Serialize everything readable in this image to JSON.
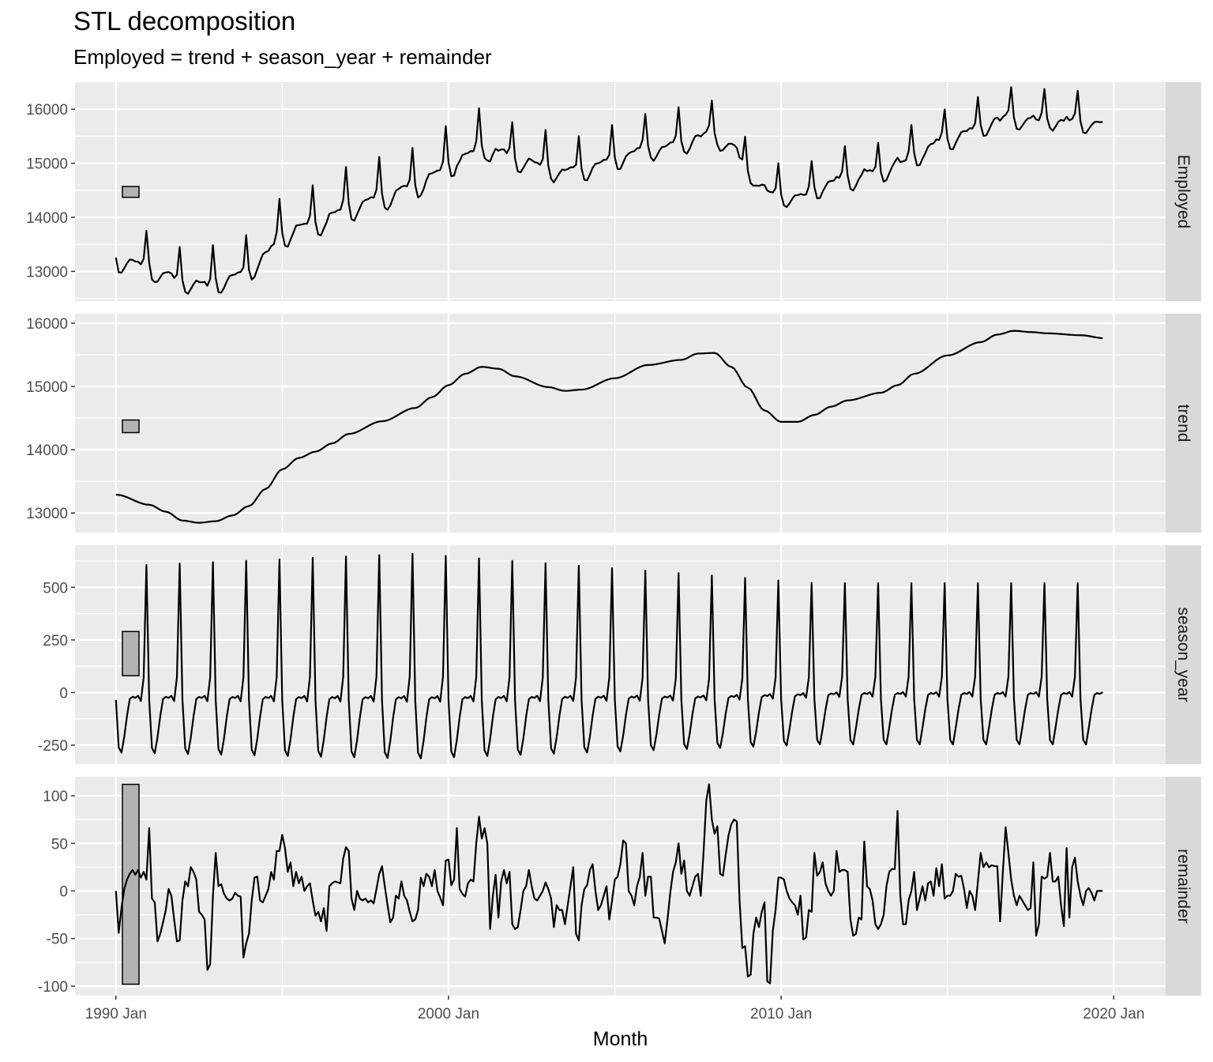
{
  "chart_data": {
    "type": "line",
    "title": "STL decomposition",
    "subtitle": "Employed = trend + season_year + remainder",
    "xlabel": "Month",
    "x_range": [
      "1990 Jan",
      "2019 Sep"
    ],
    "x_ticks": [
      "1990 Jan",
      "2000 Jan",
      "2010 Jan",
      "2020 Jan"
    ],
    "grid": true,
    "panels": [
      {
        "name": "Employed",
        "ylim": [
          12450,
          16500
        ],
        "y_ticks": [
          13000,
          14000,
          15000,
          16000
        ],
        "y_tick_labels": [
          "13000",
          "14000",
          "15000",
          "16000"
        ],
        "scale_bar": [
          14370,
          14570
        ]
      },
      {
        "name": "trend",
        "ylim": [
          12690,
          16150
        ],
        "y_ticks": [
          13000,
          14000,
          15000,
          16000
        ],
        "y_tick_labels": [
          "13000",
          "14000",
          "15000",
          "16000"
        ],
        "scale_bar": [
          14270,
          14470
        ],
        "knots": [
          [
            1990.0,
            13290
          ],
          [
            1991.0,
            13130
          ],
          [
            1991.5,
            13020
          ],
          [
            1992.0,
            12880
          ],
          [
            1992.5,
            12845
          ],
          [
            1993.0,
            12870
          ],
          [
            1993.5,
            12960
          ],
          [
            1994.0,
            13110
          ],
          [
            1994.5,
            13380
          ],
          [
            1995.0,
            13690
          ],
          [
            1995.5,
            13870
          ],
          [
            1996.0,
            13970
          ],
          [
            1996.5,
            14100
          ],
          [
            1997.0,
            14250
          ],
          [
            1998.0,
            14450
          ],
          [
            1999.0,
            14660
          ],
          [
            1999.5,
            14830
          ],
          [
            2000.0,
            15020
          ],
          [
            2000.5,
            15200
          ],
          [
            2001.0,
            15310
          ],
          [
            2001.5,
            15280
          ],
          [
            2002.0,
            15160
          ],
          [
            2003.0,
            14990
          ],
          [
            2003.5,
            14930
          ],
          [
            2004.0,
            14950
          ],
          [
            2005.0,
            15130
          ],
          [
            2006.0,
            15340
          ],
          [
            2007.0,
            15420
          ],
          [
            2007.5,
            15520
          ],
          [
            2008.0,
            15530
          ],
          [
            2008.5,
            15310
          ],
          [
            2009.0,
            14980
          ],
          [
            2009.5,
            14620
          ],
          [
            2010.0,
            14440
          ],
          [
            2010.5,
            14440
          ],
          [
            2011.0,
            14550
          ],
          [
            2011.5,
            14680
          ],
          [
            2012.0,
            14780
          ],
          [
            2013.0,
            14900
          ],
          [
            2013.5,
            15020
          ],
          [
            2014.0,
            15200
          ],
          [
            2015.0,
            15490
          ],
          [
            2016.0,
            15700
          ],
          [
            2016.5,
            15820
          ],
          [
            2017.0,
            15880
          ],
          [
            2017.5,
            15860
          ],
          [
            2018.0,
            15840
          ],
          [
            2019.0,
            15810
          ],
          [
            2019.75,
            15760
          ]
        ]
      },
      {
        "name": "season_year",
        "ylim": [
          -340,
          700
        ],
        "y_ticks": [
          -250,
          0,
          250,
          500
        ],
        "y_tick_labels": [
          "-250",
          "0",
          "250",
          "500"
        ],
        "scale_bar": [
          80,
          290
        ],
        "month_pattern": [
          -35,
          -260,
          -285,
          -210,
          -110,
          -30,
          -20,
          -25,
          -15,
          -40,
          70,
          600
        ],
        "pattern_start_amplitude": 600,
        "pattern_peak_amplitude": 660,
        "pattern_end_amplitude": 520
      },
      {
        "name": "remainder",
        "ylim": [
          -110,
          120
        ],
        "y_ticks": [
          -100,
          -50,
          0,
          50,
          100
        ],
        "y_tick_labels": [
          "-100",
          "-50",
          "0",
          "50",
          "100"
        ],
        "scale_bar": [
          -98,
          112
        ],
        "values": [
          0,
          -44,
          -18,
          2,
          12,
          18,
          22,
          17,
          22,
          14,
          20,
          12,
          66,
          -8,
          -12,
          -53,
          -45,
          -33,
          -20,
          2,
          -5,
          -30,
          -53,
          -52,
          -10,
          10,
          5,
          25,
          20,
          12,
          -22,
          -25,
          -30,
          -83,
          -77,
          -5,
          40,
          5,
          7,
          -3,
          -8,
          -10,
          -8,
          -2,
          -5,
          -6,
          -70,
          -55,
          -45,
          -10,
          14,
          15,
          -10,
          -12,
          -5,
          2,
          20,
          12,
          42,
          42,
          59,
          45,
          20,
          30,
          5,
          20,
          8,
          15,
          0,
          5,
          8,
          -10,
          -26,
          -22,
          -32,
          -18,
          -42,
          5,
          8,
          10,
          9,
          8,
          34,
          46,
          42,
          -8,
          -20,
          0,
          -8,
          -10,
          -8,
          -12,
          -10,
          -13,
          2,
          18,
          26,
          5,
          -15,
          -33,
          -28,
          -5,
          -8,
          10,
          -5,
          -10,
          -22,
          -32,
          -30,
          -20,
          14,
          5,
          18,
          15,
          5,
          22,
          0,
          -7,
          -15,
          32,
          33,
          6,
          12,
          66,
          2,
          -3,
          -6,
          8,
          12,
          10,
          50,
          78,
          55,
          66,
          50,
          -40,
          -5,
          17,
          -28,
          10,
          22,
          8,
          20,
          -35,
          -40,
          -38,
          -20,
          0,
          5,
          22,
          5,
          -8,
          -10,
          -5,
          0,
          9,
          2,
          -8,
          -38,
          -15,
          -20,
          -20,
          -35,
          -15,
          5,
          25,
          -45,
          -52,
          -15,
          2,
          6,
          22,
          28,
          0,
          -20,
          -15,
          -5,
          5,
          -30,
          -10,
          12,
          15,
          28,
          53,
          50,
          0,
          -5,
          -15,
          5,
          15,
          40,
          -5,
          15,
          15,
          -28,
          -28,
          -29,
          -42,
          -55,
          -30,
          -2,
          20,
          30,
          50,
          18,
          32,
          0,
          -5,
          5,
          15,
          18,
          -5,
          40,
          95,
          112,
          75,
          60,
          68,
          18,
          16,
          38,
          58,
          70,
          75,
          73,
          -10,
          -60,
          -58,
          -90,
          -88,
          -45,
          -28,
          -38,
          -22,
          -12,
          -95,
          -97,
          -42,
          -20,
          14,
          14,
          12,
          0,
          -8,
          -12,
          -15,
          -25,
          -5,
          -51,
          -49,
          -20,
          -22,
          40,
          16,
          20,
          30,
          8,
          0,
          -5,
          0,
          42,
          20,
          22,
          22,
          20,
          -30,
          -47,
          -45,
          -28,
          -30,
          52,
          5,
          2,
          -10,
          -35,
          -40,
          -35,
          -25,
          5,
          20,
          23,
          23,
          84,
          -5,
          -35,
          -35,
          -10,
          0,
          20,
          -20,
          -8,
          5,
          -10,
          8,
          10,
          -5,
          24,
          5,
          28,
          -8,
          -5,
          -5,
          0,
          18,
          15,
          16,
          2,
          -18,
          0,
          -5,
          -20,
          10,
          40,
          25,
          30,
          25,
          27,
          26,
          26,
          -32,
          20,
          67,
          40,
          12,
          -5,
          -15,
          -5,
          -10,
          -15,
          -20,
          -18,
          30,
          -47,
          -35,
          15,
          13,
          15,
          40,
          10,
          10,
          15,
          -15,
          -37,
          45,
          -28,
          25,
          35,
          10,
          -5,
          -15,
          0,
          3,
          -2,
          -10
        ]
      }
    ]
  }
}
